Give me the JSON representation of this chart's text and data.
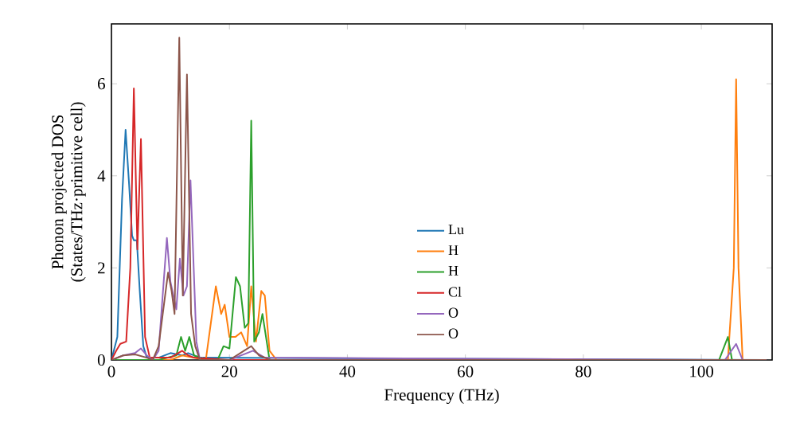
{
  "chart_data": {
    "type": "line",
    "xlabel": "Frequency (THz)",
    "ylabel": "Phonon projected DOS\n(States/THz·primitive cell)",
    "xlim": [
      0,
      112
    ],
    "ylim": [
      0,
      7.3
    ],
    "xticks": [
      0,
      20,
      40,
      60,
      80,
      100
    ],
    "yticks": [
      0,
      2,
      4,
      6
    ],
    "legend": "center",
    "grid": false,
    "marker": "none",
    "line_style": "solid",
    "series": [
      {
        "name": "Lu",
        "color": "#1f77b4",
        "x": [
          0,
          1,
          1.8,
          2.4,
          3,
          3.5,
          3.8,
          4.3,
          4.8,
          5.4,
          6,
          8,
          10,
          12,
          13,
          15,
          111
        ],
        "values": [
          0,
          0.5,
          3.5,
          5.0,
          3.8,
          2.7,
          2.6,
          2.6,
          1.5,
          0.3,
          0.05,
          0.05,
          0.15,
          0.1,
          0.15,
          0.05,
          0
        ]
      },
      {
        "name": "H",
        "color": "#ff7f0e",
        "x": [
          0,
          10,
          12,
          14,
          16,
          17.7,
          18.6,
          19.2,
          20,
          21,
          22,
          23,
          23.7,
          24.5,
          25.4,
          26,
          26.8,
          28,
          104.5,
          105.5,
          105.9,
          106.3,
          107,
          111
        ],
        "values": [
          0,
          0,
          0.1,
          0.05,
          0,
          1.6,
          1.0,
          1.2,
          0.5,
          0.5,
          0.6,
          0.3,
          1.6,
          0.4,
          1.5,
          1.4,
          0.2,
          0,
          0,
          2,
          6.1,
          2,
          0,
          0
        ]
      },
      {
        "name": "H",
        "color": "#2ca02c",
        "x": [
          0,
          8,
          11,
          11.8,
          12.5,
          13.2,
          14,
          16,
          18,
          19,
          20,
          21.1,
          21.8,
          22.6,
          23.2,
          23.7,
          24.2,
          25,
          25.6,
          26.8,
          28,
          103,
          104.5,
          105.2,
          111
        ],
        "values": [
          0,
          0,
          0.1,
          0.5,
          0.2,
          0.5,
          0.1,
          0,
          0,
          0.3,
          0.25,
          1.8,
          1.6,
          0.7,
          0.8,
          5.2,
          0.4,
          0.6,
          1.0,
          0,
          0,
          0,
          0.5,
          0,
          0
        ]
      },
      {
        "name": "Cl",
        "color": "#d62728",
        "x": [
          0,
          0.8,
          1.5,
          2.5,
          3.2,
          3.8,
          4.4,
          5,
          5.7,
          6.5,
          8,
          10,
          12,
          13,
          14,
          20,
          111
        ],
        "values": [
          0,
          0.2,
          0.35,
          0.4,
          2,
          5.9,
          2.4,
          4.8,
          0.5,
          0.05,
          0.05,
          0.05,
          0.2,
          0.1,
          0.05,
          0,
          0
        ]
      },
      {
        "name": "O",
        "color": "#9467bd",
        "x": [
          0,
          2,
          4,
          5,
          6,
          7,
          8,
          9.4,
          10,
          11,
          11.6,
          12.2,
          12.8,
          13.4,
          14.4,
          15,
          20,
          24,
          26,
          104,
          105.9,
          107,
          111
        ],
        "values": [
          0,
          0.1,
          0.15,
          0.25,
          0.1,
          0,
          0.2,
          2.65,
          1.7,
          1.1,
          2.2,
          1.4,
          1.6,
          3.9,
          0.4,
          0,
          0,
          0.2,
          0.05,
          0,
          0.35,
          0,
          0
        ]
      },
      {
        "name": "O",
        "color": "#8c564b",
        "x": [
          0,
          2,
          4,
          6,
          7,
          8,
          9.6,
          10.2,
          10.7,
          11.5,
          12.1,
          12.8,
          13.5,
          14.2,
          15,
          20,
          23.7,
          25,
          27,
          111
        ],
        "values": [
          0,
          0.1,
          0.12,
          0.05,
          0,
          0.3,
          1.9,
          1.5,
          1.0,
          7.0,
          1.4,
          6.2,
          1.0,
          0.3,
          0,
          0,
          0.3,
          0.1,
          0,
          0
        ]
      }
    ]
  }
}
